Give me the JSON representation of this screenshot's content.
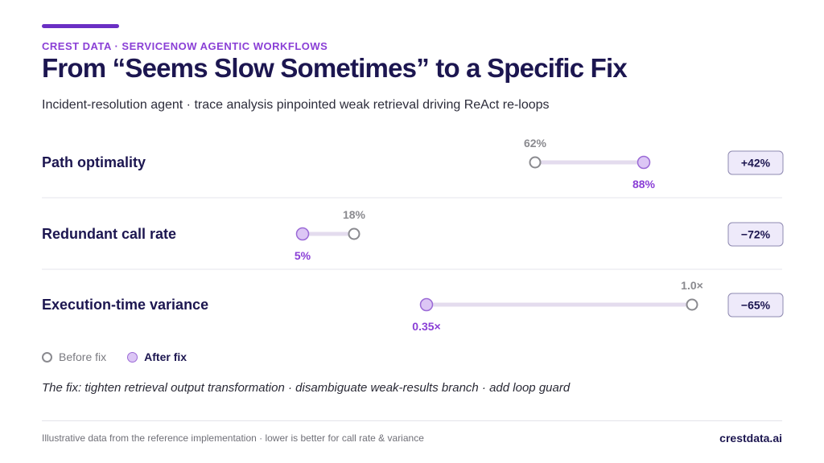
{
  "header": {
    "eyebrow": "CREST DATA · SERVICENOW AGENTIC WORKFLOWS",
    "title": "From “Seems Slow Sometimes” to a Specific Fix",
    "subtitle": "Incident-resolution agent · trace analysis pinpointed weak retrieval driving ReAct re-loops"
  },
  "chart_data": {
    "type": "dumbbell",
    "series": [
      {
        "name": "Before fix"
      },
      {
        "name": "After fix"
      }
    ],
    "rows": [
      {
        "metric": "Path optimality",
        "before": 62,
        "after": 88,
        "before_label": "62%",
        "after_label": "88%",
        "change": "+42%"
      },
      {
        "metric": "Redundant call rate",
        "before": 18,
        "after": 5,
        "before_label": "18%",
        "after_label": "5%",
        "change": "−72%"
      },
      {
        "metric": "Execution-time variance",
        "before": 1.0,
        "after": 0.35,
        "before_label": "1.0×",
        "after_label": "0.35×",
        "change": "−65%"
      }
    ]
  },
  "fix_note": "The fix: tighten retrieval output transformation · disambiguate weak-results branch · add loop guard",
  "footer": {
    "note": "Illustrative data from the reference implementation · lower is better for call rate & variance",
    "brand": "crestdata.ai"
  },
  "colors": {
    "accent": "#6a2fc4",
    "title": "#1c1650",
    "before": "#8a8a8f",
    "after_fill": "#dcc6f5",
    "after_stroke": "#9b6ad6",
    "after_text": "#8a3fd6"
  }
}
